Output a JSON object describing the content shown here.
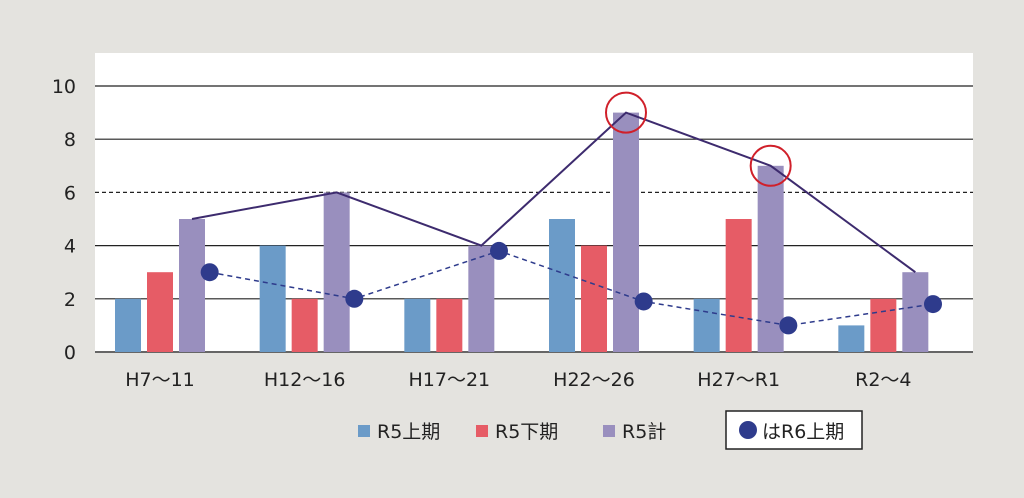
{
  "chart_data": {
    "type": "bar",
    "categories": [
      "H7〜11",
      "H12〜16",
      "H17〜21",
      "H22〜26",
      "H27〜R1",
      "R2〜4"
    ],
    "ylim": [
      0,
      10
    ],
    "yticks": [
      "0",
      "2",
      "4",
      "6",
      "8",
      "10"
    ],
    "grid": true,
    "reference_line": 6,
    "series": [
      {
        "name": "R5上期",
        "type": "bar",
        "color": "#6b9bc8",
        "values": [
          2,
          4,
          2,
          5,
          2,
          1
        ]
      },
      {
        "name": "R5下期",
        "type": "bar",
        "color": "#e65c66",
        "values": [
          3,
          2,
          2,
          4,
          5,
          2
        ]
      },
      {
        "name": "R5計",
        "type": "bar",
        "color": "#998fbe",
        "values": [
          5,
          6,
          4,
          9,
          7,
          3
        ]
      },
      {
        "name": "R5計_line",
        "type": "line",
        "color": "#3d2b6e",
        "values": [
          5,
          6,
          4,
          9,
          7,
          3
        ]
      },
      {
        "name": "R6上期",
        "type": "dashed-line-markers",
        "color": "#2e3b8c",
        "values": [
          3,
          2,
          3.8,
          1.9,
          1,
          1.8
        ]
      }
    ],
    "highlights": [
      {
        "category": "H22〜26",
        "value": 9
      },
      {
        "category": "H27〜R1",
        "value": 7
      }
    ],
    "legend": {
      "placement": "bottom",
      "items": [
        "R5上期",
        "R5下期",
        "R5計"
      ],
      "marker_note": "はR6上期"
    }
  }
}
